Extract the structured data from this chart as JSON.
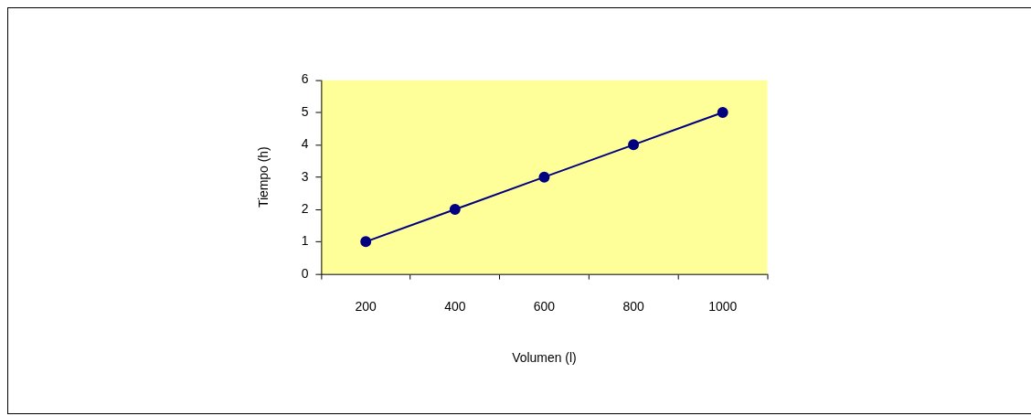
{
  "chart_data": {
    "type": "line",
    "xlabel": "Volumen (l)",
    "ylabel": "Tiempo (h)",
    "categories": [
      "200",
      "400",
      "600",
      "800",
      "1000"
    ],
    "series": [
      {
        "color": "#000080",
        "values": [
          1,
          2,
          3,
          4,
          5
        ]
      }
    ],
    "ylim": [
      0,
      6
    ],
    "yticks": [
      0,
      1,
      2,
      3,
      4,
      5,
      6
    ],
    "grid": false,
    "legend": false,
    "marker": "circle",
    "line_style": "solid"
  }
}
